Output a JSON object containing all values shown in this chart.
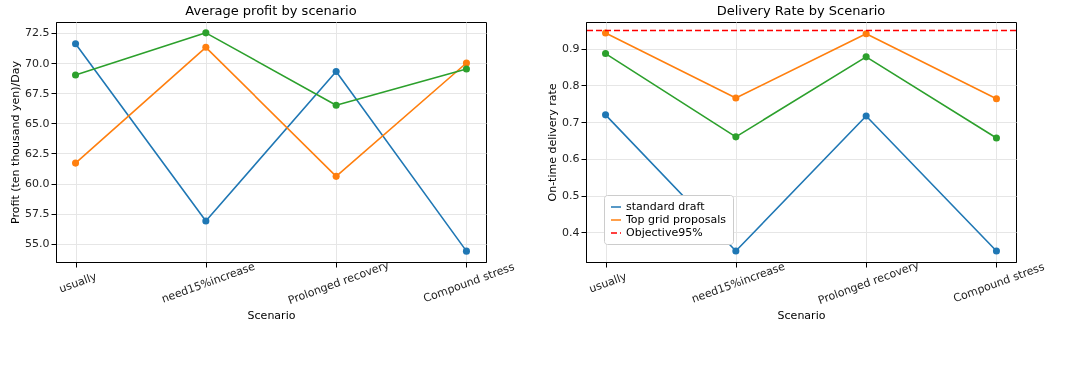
{
  "chart_data": [
    {
      "type": "line",
      "title": "Average profit by scenario",
      "xlabel": "Scenario",
      "ylabel": "Profit (ten thousand yen)/Day",
      "categories": [
        "usually",
        "need15%increase",
        "Prolonged recovery",
        "Compound stress"
      ],
      "series": [
        {
          "color": "#1f77b4",
          "values": [
            71.6,
            56.9,
            69.3,
            54.4
          ]
        },
        {
          "color": "#ff7f0e",
          "values": [
            61.7,
            71.3,
            60.6,
            70.0
          ]
        },
        {
          "color": "#2ca02c",
          "values": [
            69.0,
            72.5,
            66.5,
            69.5
          ]
        }
      ],
      "ylim": [
        53.5,
        73.4
      ],
      "yticks": [
        {
          "value": 55,
          "label": "55.0"
        },
        {
          "value": 57.5,
          "label": "57.5"
        },
        {
          "value": 60,
          "label": "60.0"
        },
        {
          "value": 62.5,
          "label": "62.5"
        },
        {
          "value": 65,
          "label": "65.0"
        },
        {
          "value": 67.5,
          "label": "67.5"
        },
        {
          "value": 70,
          "label": "70.0"
        },
        {
          "value": 72.5,
          "label": "72.5"
        }
      ],
      "grid": true,
      "marker": "circle",
      "legend": false
    },
    {
      "type": "line",
      "title": "Delivery Rate by Scenario",
      "xlabel": "Scenario",
      "ylabel": "On-time delivery rate",
      "categories": [
        "usually",
        "need15%increase",
        "Prolonged recovery",
        "Compound stress"
      ],
      "series": [
        {
          "name": "standard draft",
          "color": "#1f77b4",
          "values": [
            0.72,
            0.349,
            0.717,
            0.349
          ]
        },
        {
          "name": "Top grid proposals",
          "color": "#ff7f0e",
          "values": [
            0.943,
            0.766,
            0.941,
            0.764
          ]
        },
        {
          "color": "#2ca02c",
          "values": [
            0.887,
            0.66,
            0.878,
            0.657
          ]
        }
      ],
      "ref_lines": [
        {
          "axis": "y",
          "value": 0.95,
          "label": "Objective95%",
          "color": "#ff0000",
          "line_style": "dashed"
        }
      ],
      "ylim": [
        0.319,
        0.973
      ],
      "yticks": [
        0.4,
        0.5,
        0.6,
        0.7,
        0.8,
        0.9
      ],
      "grid": true,
      "marker": "circle",
      "legend": "bottom left"
    }
  ]
}
